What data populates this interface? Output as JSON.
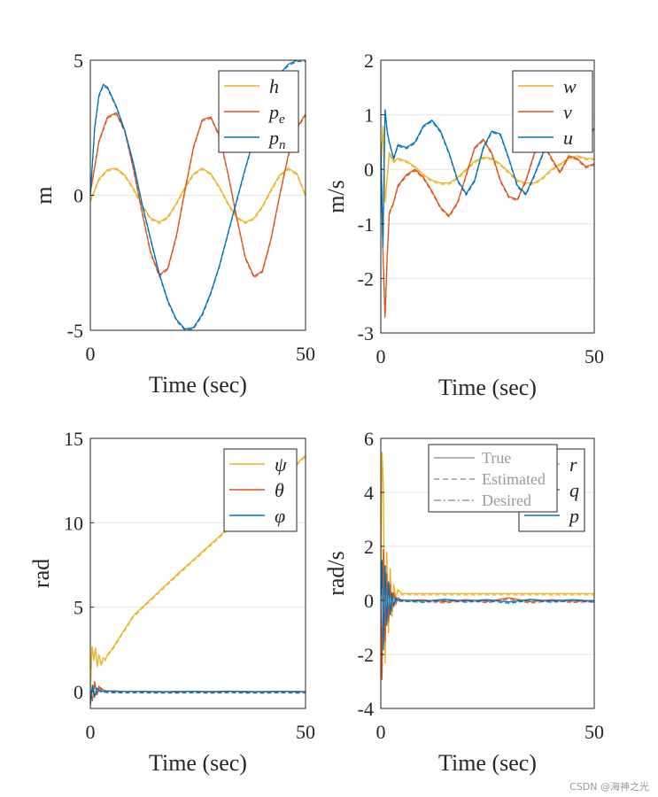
{
  "colors": {
    "yellow": "#EDB120",
    "orange": "#D95319",
    "blue": "#0072BD",
    "grid": "#e6e6e6",
    "axis": "#262626",
    "meta_legend": "#9a9a9a"
  },
  "watermark": "CSDN @海神之光",
  "chart_data": [
    {
      "type": "line",
      "id": "position",
      "title": "",
      "xlabel": "Time (sec)",
      "ylabel": "m",
      "xlim": [
        0,
        50
      ],
      "ylim": [
        -5,
        5
      ],
      "xticks": [
        0,
        50
      ],
      "yticks": [
        -5,
        0,
        5
      ],
      "legend_position": "top-right",
      "series": [
        {
          "name": "h",
          "legend": "h",
          "legend_sub": "",
          "color_key": "yellow",
          "x": [
            0,
            2,
            4,
            6,
            8,
            10,
            12,
            14,
            16,
            18,
            20,
            22,
            24,
            26,
            28,
            30,
            32,
            34,
            36,
            38,
            40,
            42,
            44,
            46,
            48,
            50
          ],
          "y": [
            -0.2,
            0.6,
            0.95,
            1.0,
            0.75,
            0.25,
            -0.35,
            -0.85,
            -1.0,
            -0.8,
            -0.3,
            0.3,
            0.8,
            1.0,
            0.8,
            0.3,
            -0.3,
            -0.8,
            -1.0,
            -0.85,
            -0.4,
            0.2,
            0.75,
            1.0,
            0.8,
            0.0
          ]
        },
        {
          "name": "p_e",
          "legend": "p",
          "legend_sub": "e",
          "color_key": "orange",
          "x": [
            0,
            2,
            4,
            6,
            8,
            10,
            12,
            14,
            16,
            18,
            20,
            22,
            24,
            26,
            28,
            30,
            32,
            34,
            36,
            38,
            40,
            42,
            44,
            46,
            48,
            50
          ],
          "y": [
            0.1,
            2.0,
            2.9,
            3.05,
            2.4,
            1.0,
            -0.6,
            -2.1,
            -2.95,
            -2.7,
            -1.5,
            0.2,
            1.8,
            2.8,
            2.9,
            2.2,
            0.8,
            -0.8,
            -2.3,
            -3.0,
            -2.8,
            -1.6,
            0.0,
            1.5,
            2.5,
            3.0
          ]
        },
        {
          "name": "p_n",
          "legend": "p",
          "legend_sub": "n",
          "color_key": "blue",
          "x": [
            0,
            1,
            2,
            3,
            4,
            6,
            8,
            10,
            12,
            14,
            16,
            18,
            20,
            22,
            24,
            26,
            28,
            30,
            32,
            34,
            36,
            38,
            40,
            42,
            44,
            46,
            48,
            50
          ],
          "y": [
            0.0,
            2.5,
            3.7,
            4.1,
            4.0,
            3.3,
            2.4,
            1.2,
            -0.3,
            -1.6,
            -2.9,
            -3.9,
            -4.6,
            -4.95,
            -4.9,
            -4.4,
            -3.6,
            -2.6,
            -1.4,
            -0.2,
            1.0,
            2.1,
            3.1,
            3.9,
            4.5,
            4.85,
            5.0,
            5.0
          ]
        }
      ]
    },
    {
      "type": "line",
      "id": "velocity",
      "title": "",
      "xlabel": "Time (sec)",
      "ylabel": "m/s",
      "xlim": [
        0,
        50
      ],
      "ylim": [
        -3,
        2
      ],
      "xticks": [
        0,
        50
      ],
      "yticks": [
        -3,
        -2,
        -1,
        0,
        1,
        2
      ],
      "legend_position": "top-right",
      "series": [
        {
          "name": "w",
          "legend": "w",
          "legend_sub": "",
          "color_key": "yellow",
          "x": [
            0,
            0.5,
            1,
            2,
            3,
            4,
            6,
            8,
            10,
            12,
            14,
            16,
            18,
            20,
            22,
            24,
            26,
            28,
            30,
            32,
            34,
            36,
            38,
            40,
            42,
            44,
            46,
            48,
            50
          ],
          "y": [
            0.0,
            0.8,
            -0.6,
            0.3,
            0.15,
            0.2,
            0.15,
            0.05,
            -0.1,
            -0.2,
            -0.25,
            -0.25,
            -0.15,
            0.0,
            0.15,
            0.22,
            0.2,
            0.1,
            -0.05,
            -0.2,
            -0.25,
            -0.25,
            -0.15,
            0.0,
            0.1,
            0.2,
            0.25,
            0.2,
            0.2
          ]
        },
        {
          "name": "v",
          "legend": "v",
          "legend_sub": "",
          "color_key": "orange",
          "x": [
            0,
            0.5,
            1,
            1.5,
            2,
            3,
            4,
            6,
            8,
            10,
            12,
            14,
            16,
            18,
            20,
            22,
            24,
            26,
            28,
            30,
            32,
            34,
            36,
            38,
            40,
            42,
            44,
            46,
            48,
            50
          ],
          "y": [
            0.2,
            -1.5,
            -2.7,
            -1.6,
            -0.8,
            -0.6,
            -0.3,
            -0.1,
            0.0,
            -0.15,
            -0.4,
            -0.7,
            -0.85,
            -0.6,
            -0.1,
            0.4,
            0.55,
            0.3,
            -0.2,
            -0.5,
            -0.55,
            -0.2,
            0.3,
            0.5,
            0.2,
            -0.05,
            0.25,
            0.2,
            0.05,
            0.1
          ]
        },
        {
          "name": "u",
          "legend": "u",
          "legend_sub": "",
          "color_key": "blue",
          "x": [
            0,
            0.5,
            1,
            1.5,
            2,
            3,
            4,
            6,
            8,
            10,
            12,
            14,
            16,
            18,
            20,
            22,
            24,
            26,
            28,
            30,
            32,
            34,
            36,
            38,
            40,
            42,
            44,
            46,
            48,
            50
          ],
          "y": [
            0.5,
            -1.4,
            1.1,
            0.7,
            0.5,
            0.2,
            0.45,
            0.4,
            0.5,
            0.8,
            0.9,
            0.7,
            0.3,
            -0.2,
            -0.45,
            -0.2,
            0.4,
            0.7,
            0.65,
            0.2,
            -0.3,
            -0.45,
            -0.1,
            0.3,
            0.5,
            0.6,
            0.5,
            0.55,
            0.6,
            0.75
          ]
        }
      ]
    },
    {
      "type": "line",
      "id": "attitude",
      "title": "",
      "xlabel": "Time (sec)",
      "ylabel": "rad",
      "xlim": [
        0,
        50
      ],
      "ylim": [
        -1,
        15
      ],
      "xticks": [
        0,
        50
      ],
      "yticks": [
        0,
        5,
        10,
        15
      ],
      "legend_position": "top-right",
      "series": [
        {
          "name": "psi",
          "legend": "ψ",
          "legend_sub": "",
          "color_key": "yellow",
          "x": [
            0,
            0.4,
            0.8,
            1.2,
            1.6,
            2,
            2.5,
            3,
            3.5,
            4,
            5,
            10,
            20,
            30,
            40,
            50
          ],
          "y": [
            0.0,
            2.7,
            1.9,
            2.6,
            1.5,
            2.2,
            1.6,
            2.0,
            1.9,
            2.2,
            2.5,
            4.5,
            6.9,
            9.2,
            11.6,
            14.0
          ]
        },
        {
          "name": "theta",
          "legend": "θ",
          "legend_sub": "",
          "color_key": "orange",
          "x": [
            0,
            0.5,
            1,
            1.5,
            2,
            3,
            4,
            5,
            8,
            12,
            16,
            20,
            24,
            28,
            32,
            36,
            40,
            44,
            48,
            50
          ],
          "y": [
            0.0,
            -0.5,
            0.6,
            -0.2,
            0.3,
            0.1,
            0.0,
            0.05,
            0.0,
            0.0,
            -0.02,
            0.02,
            0.0,
            -0.02,
            0.0,
            0.02,
            -0.02,
            0.0,
            0.02,
            0.0
          ]
        },
        {
          "name": "phi",
          "legend": "φ",
          "legend_sub": "",
          "color_key": "blue",
          "x": [
            0,
            0.5,
            1,
            1.5,
            2,
            3,
            4,
            5,
            8,
            12,
            16,
            20,
            24,
            28,
            32,
            36,
            40,
            44,
            48,
            50
          ],
          "y": [
            -0.8,
            0.4,
            -0.3,
            0.2,
            0.1,
            0.0,
            0.05,
            0.0,
            0.0,
            0.02,
            0.0,
            -0.02,
            0.02,
            0.0,
            0.03,
            -0.02,
            0.0,
            0.02,
            -0.02,
            0.0
          ]
        }
      ]
    },
    {
      "type": "line",
      "id": "rates",
      "title": "",
      "xlabel": "Time (sec)",
      "ylabel": "rad/s",
      "xlim": [
        0,
        50
      ],
      "ylim": [
        -4,
        6
      ],
      "xticks": [
        0,
        50
      ],
      "yticks": [
        -4,
        -2,
        0,
        2,
        4,
        6
      ],
      "legend_position": "top-right",
      "style_legend": {
        "labels": [
          "True",
          "Estimated",
          "Desired"
        ],
        "dashes": [
          "",
          "6 4",
          "8 3 2 3"
        ]
      },
      "series": [
        {
          "name": "r",
          "legend": "r",
          "legend_sub": "",
          "color_key": "yellow",
          "x": [
            0,
            0.3,
            0.6,
            1,
            1.4,
            1.8,
            2.2,
            2.6,
            3,
            3.5,
            4,
            5,
            10,
            20,
            30,
            40,
            50
          ],
          "y": [
            0.0,
            5.5,
            4.2,
            -2.3,
            1.8,
            -1.2,
            1.2,
            -0.6,
            0.6,
            0.1,
            0.4,
            0.25,
            0.25,
            0.25,
            0.25,
            0.25,
            0.25
          ]
        },
        {
          "name": "q",
          "legend": "q",
          "legend_sub": "",
          "color_key": "orange",
          "x": [
            0,
            0.3,
            0.6,
            1,
            1.4,
            1.8,
            2.2,
            2.6,
            3,
            3.5,
            4,
            5,
            10,
            15,
            20,
            25,
            30,
            35,
            40,
            45,
            50
          ],
          "y": [
            0.0,
            -2.9,
            1.9,
            -1.5,
            1.0,
            -0.8,
            0.6,
            -0.4,
            0.3,
            -0.1,
            0.1,
            0.0,
            0.02,
            -0.05,
            0.03,
            -0.04,
            0.1,
            -0.05,
            0.03,
            -0.03,
            0.0
          ]
        },
        {
          "name": "p",
          "legend": "p",
          "legend_sub": "",
          "color_key": "blue",
          "x": [
            0,
            0.3,
            0.6,
            1,
            1.4,
            1.8,
            2.2,
            2.6,
            3,
            3.5,
            4,
            5,
            10,
            15,
            20,
            25,
            30,
            35,
            40,
            45,
            50
          ],
          "y": [
            0.0,
            1.5,
            -1.8,
            1.3,
            -0.9,
            0.7,
            -0.5,
            0.3,
            -0.2,
            0.1,
            0.0,
            0.02,
            -0.03,
            0.04,
            -0.02,
            0.03,
            -0.06,
            0.04,
            -0.02,
            0.03,
            -0.02
          ]
        }
      ]
    }
  ]
}
